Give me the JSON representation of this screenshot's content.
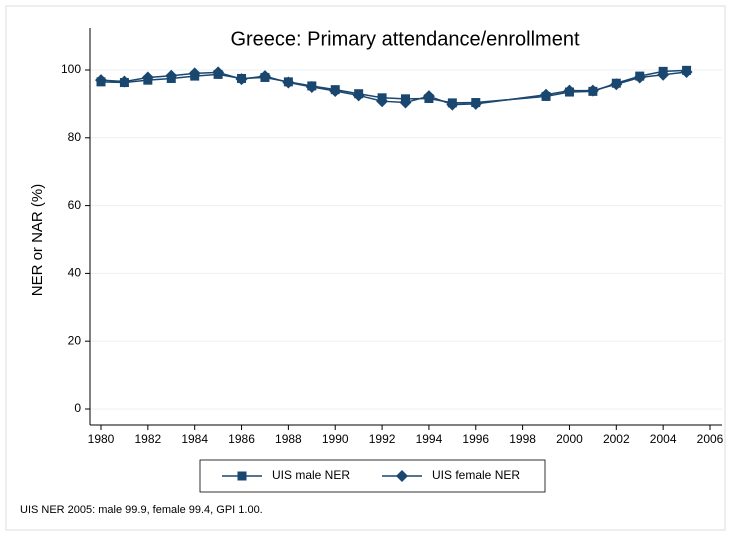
{
  "chart_data": {
    "type": "line",
    "title": "Greece: Primary attendance/enrollment",
    "y_label": "NER or NAR (%)",
    "note": "UIS NER 2005: male 99.9, female 99.4, GPI 1.00.",
    "x": [
      1980,
      1981,
      1982,
      1983,
      1984,
      1985,
      1986,
      1987,
      1988,
      1989,
      1990,
      1991,
      1992,
      1993,
      1994,
      1995,
      1996,
      1999,
      2000,
      2001,
      2002,
      2003,
      2004,
      2005
    ],
    "series": [
      {
        "name": "UIS male NER",
        "color": "#1a476f",
        "marker": "square",
        "values": [
          96.5,
          96.3,
          97.0,
          97.5,
          98.2,
          98.7,
          97.5,
          97.8,
          96.5,
          95.3,
          94.2,
          93.0,
          91.8,
          91.5,
          91.6,
          90.3,
          90.4,
          92.2,
          93.5,
          93.7,
          96.1,
          98.2,
          99.6,
          99.9
        ]
      },
      {
        "name": "UIS female NER",
        "color": "#1a476f",
        "marker": "diamond",
        "values": [
          97.0,
          96.6,
          97.8,
          98.3,
          99.0,
          99.3,
          97.3,
          98.2,
          96.3,
          95.0,
          93.8,
          92.5,
          90.8,
          90.4,
          92.3,
          89.8,
          90.0,
          92.7,
          93.9,
          93.9,
          95.8,
          97.8,
          98.6,
          99.4
        ]
      }
    ],
    "xlim": [
      1980,
      2006
    ],
    "xticks": [
      1980,
      1982,
      1984,
      1986,
      1988,
      1990,
      1992,
      1994,
      1996,
      1998,
      2000,
      2002,
      2004,
      2006
    ],
    "ylim": [
      0,
      100
    ],
    "yticks": [
      0,
      20,
      40,
      60,
      80,
      100
    ],
    "grid": true,
    "legend": "bottom"
  }
}
